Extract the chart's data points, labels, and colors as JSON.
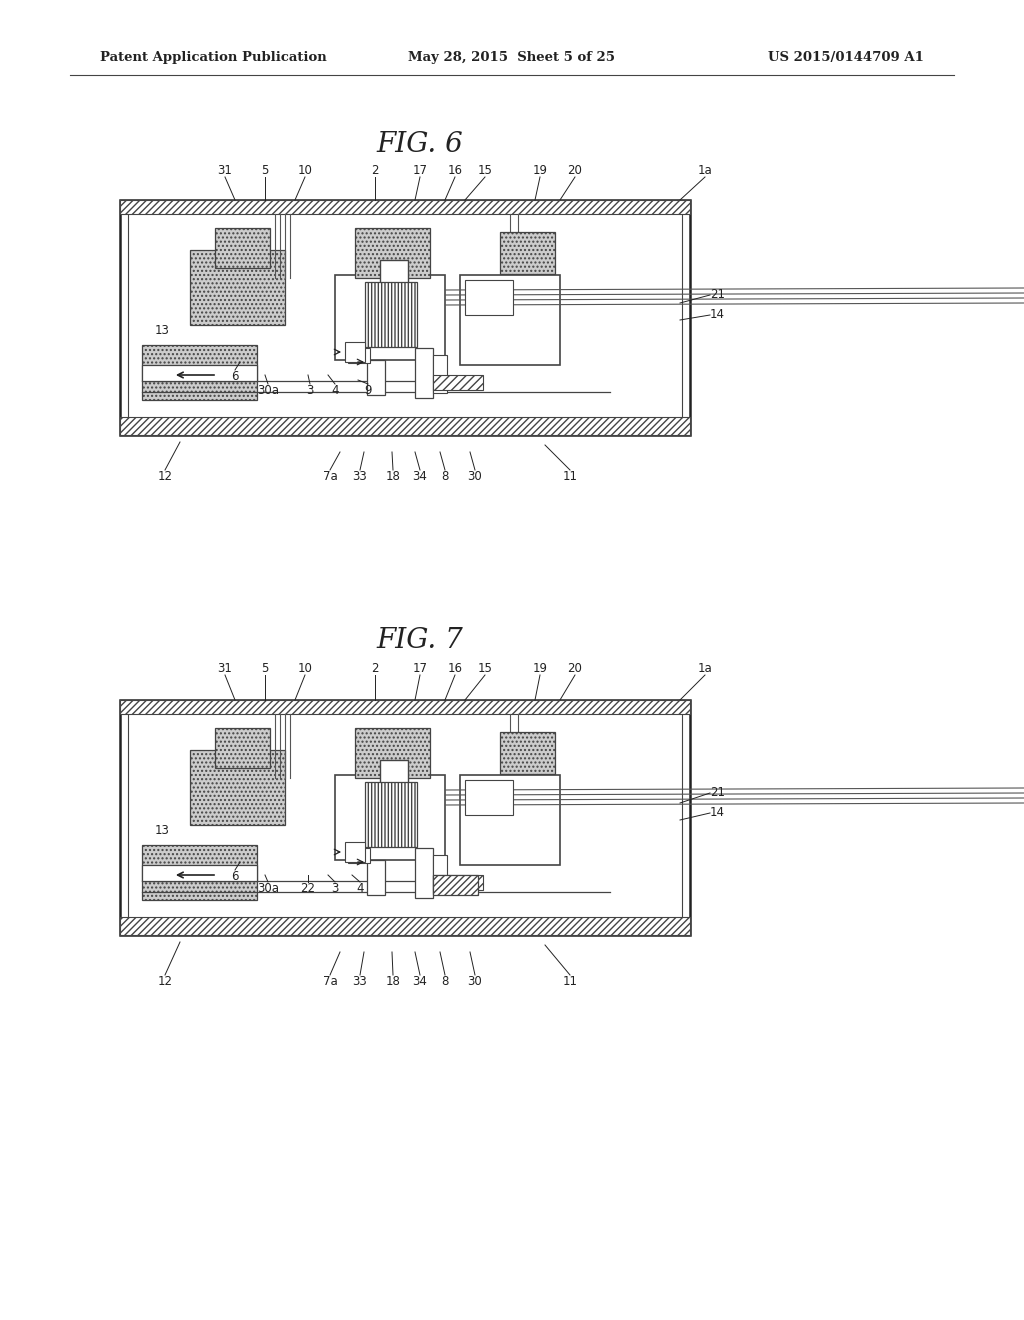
{
  "header_left": "Patent Application Publication",
  "header_mid": "May 28, 2015  Sheet 5 of 25",
  "header_right": "US 2015/0144709 A1",
  "fig6_title": "FIG. 6",
  "fig7_title": "FIG. 7",
  "bg_color": "#ffffff",
  "line_color": "#222222",
  "label_fontsize": 8.5,
  "title_fontsize": 20,
  "header_fontsize": 9.5
}
